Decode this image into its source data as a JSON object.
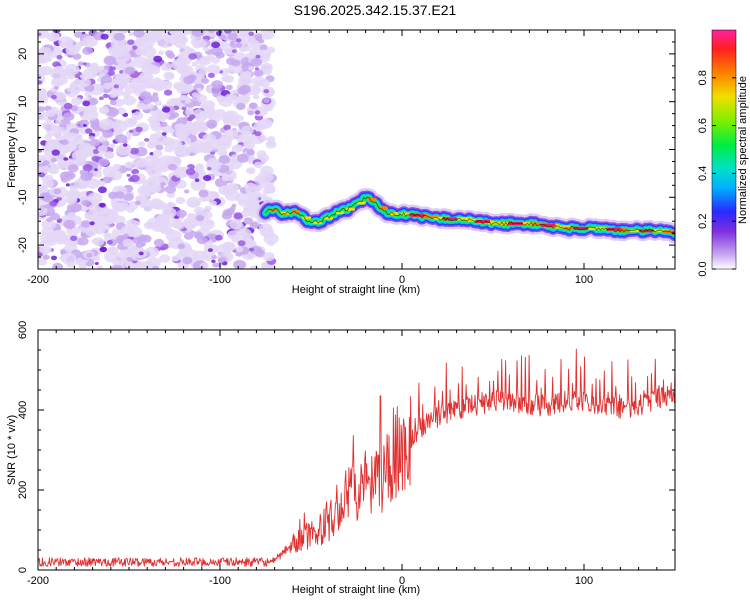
{
  "title": "S196.2025.342.15.37.E21",
  "colors": {
    "snr_line": "#e03030",
    "ridge_core": "#e8204a",
    "noise_light": "#d9c9f3",
    "noise_dark": "#8a3fe0"
  },
  "chart_data": [
    {
      "type": "heatmap",
      "name": "spectrogram",
      "xlabel": "Height of straight line (km)",
      "ylabel": "Frequency (Hz)",
      "xlim": [
        -200,
        150
      ],
      "ylim": [
        -25,
        25
      ],
      "xticks": [
        -200,
        -100,
        0,
        100
      ],
      "xtick_labels": [
        "-200",
        "-100",
        "0",
        "100"
      ],
      "yticks": [
        -20,
        -10,
        0,
        10,
        20
      ],
      "ytick_labels": [
        "-20",
        "-10",
        "0",
        "10",
        "20"
      ],
      "noise_region": [
        -200,
        -75
      ],
      "ridge": {
        "x": [
          -75,
          -70,
          -65,
          -60,
          -55,
          -50,
          -45,
          -40,
          -35,
          -30,
          -25,
          -20,
          -15,
          -10,
          -5,
          0,
          10,
          20,
          30,
          40,
          50,
          60,
          70,
          80,
          90,
          100,
          110,
          120,
          130,
          140,
          150
        ],
        "frequency": [
          -13,
          -12.5,
          -13.5,
          -13,
          -14,
          -15.5,
          -15,
          -14,
          -13,
          -12.5,
          -11.5,
          -10,
          -11,
          -13,
          -13.5,
          -13.5,
          -14,
          -14.5,
          -14.5,
          -15,
          -15.5,
          -15.5,
          -15.5,
          -16,
          -16.5,
          -16.5,
          -16.5,
          -17,
          -17,
          -17,
          -17.5
        ]
      },
      "colorbar": {
        "label": "Normalized spectral amplitude",
        "range": [
          0,
          1
        ],
        "ticks": [
          0.0,
          0.2,
          0.4,
          0.6,
          0.8
        ],
        "tick_labels": [
          "0.0",
          "0.2",
          "0.4",
          "0.6",
          "0.8"
        ]
      }
    },
    {
      "type": "line",
      "name": "snr",
      "xlabel": "Height of straight line (km)",
      "ylabel": "SNR (10 * v/v)",
      "xlim": [
        -200,
        150
      ],
      "ylim": [
        0,
        600
      ],
      "xticks": [
        -200,
        -100,
        0,
        100
      ],
      "xtick_labels": [
        "-200",
        "-100",
        "0",
        "100"
      ],
      "yticks": [
        0,
        200,
        400,
        600
      ],
      "ytick_labels": [
        "0",
        "200",
        "400",
        "600"
      ],
      "series": [
        {
          "name": "SNR",
          "envelope_x": [
            -200,
            -70,
            -62,
            -55,
            -50,
            -45,
            -40,
            -35,
            -30,
            -25,
            -20,
            -15,
            -10,
            -5,
            0,
            10,
            20,
            30,
            40,
            50,
            60,
            70,
            80,
            90,
            100,
            110,
            120,
            130,
            140,
            150
          ],
          "envelope_y": [
            20,
            20,
            60,
            90,
            95,
            110,
            130,
            160,
            200,
            210,
            230,
            220,
            260,
            300,
            330,
            380,
            410,
            430,
            440,
            450,
            450,
            440,
            440,
            445,
            450,
            440,
            430,
            440,
            455,
            460
          ],
          "annotation_peak": {
            "x": -12,
            "y": 435
          }
        }
      ]
    }
  ]
}
